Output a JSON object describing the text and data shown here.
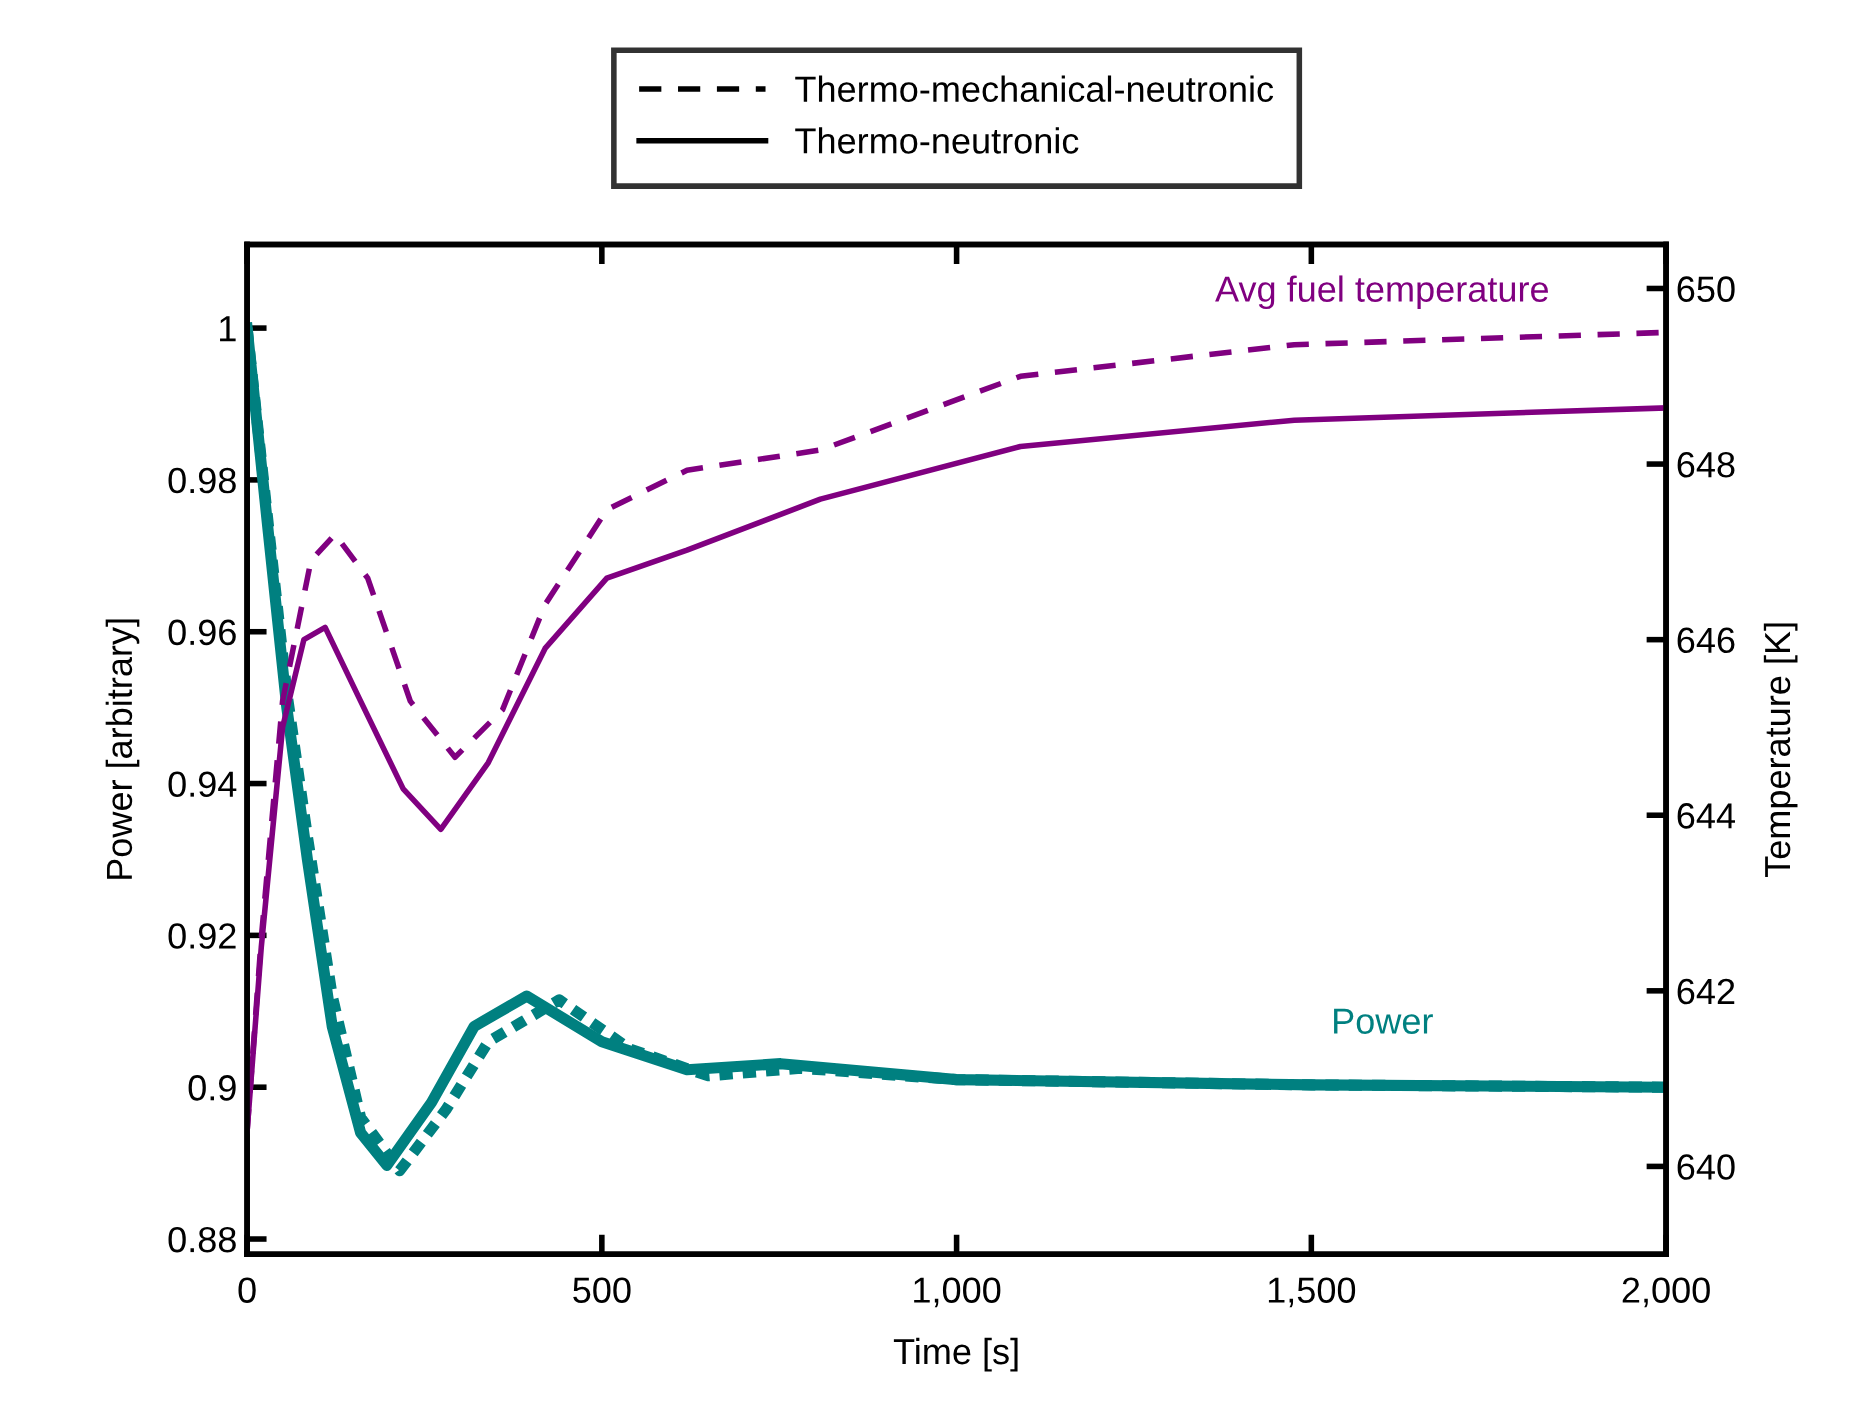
{
  "chart_data": {
    "type": "line",
    "xlabel": "Time [s]",
    "ylabel": "Power [arbitrary]",
    "y2label": "Temperature [K]",
    "xlim": [
      0,
      2000
    ],
    "xticks": [
      0,
      500,
      {
        "value": 1000,
        "label": "1,000"
      },
      {
        "value": 1500,
        "label": "1,500"
      },
      {
        "value": 2000,
        "label": "2,000"
      }
    ],
    "ylim": [
      0.878,
      1.011
    ],
    "yticks": [
      0.88,
      0.9,
      0.92,
      0.94,
      0.96,
      0.98,
      1
    ],
    "y2lim": [
      639,
      650.5
    ],
    "y2ticks": [
      640,
      642,
      644,
      646,
      648,
      650
    ],
    "grid": false,
    "legend": "top",
    "marker": "none",
    "annotations": [
      "Thermo-mechanical-neutronic",
      "Thermo-neutronic"
    ],
    "series": [
      {
        "color": "#008080",
        "line_style": "dashed",
        "x": [
          0,
          30,
          56,
          85,
          120,
          160,
          215,
          280,
          340,
          440,
          540,
          650,
          780,
          1000,
          1500,
          2000
        ],
        "values": [
          1.0,
          0.974,
          0.952,
          0.933,
          0.912,
          0.896,
          0.889,
          0.897,
          0.906,
          0.9115,
          0.905,
          0.9015,
          0.9025,
          0.901,
          0.9003,
          0.9
        ]
      },
      {
        "name": "Power",
        "color": "#008080",
        "line_style": "solid",
        "x": [
          0,
          30,
          56,
          85,
          120,
          160,
          197,
          260,
          320,
          394,
          500,
          620,
          752,
          1000,
          1500,
          2000
        ],
        "values": [
          1.0,
          0.973,
          0.95,
          0.93,
          0.908,
          0.894,
          0.8897,
          0.898,
          0.908,
          0.912,
          0.906,
          0.9023,
          0.9031,
          0.901,
          0.9003,
          0.9
        ]
      },
      {
        "color": "#800080",
        "line_style": "dashed",
        "axis": "y2",
        "x": [
          0,
          20,
          50,
          90,
          124,
          170,
          230,
          293,
          360,
          420,
          507,
          620,
          808,
          1090,
          1476,
          2000
        ],
        "values": [
          640.4,
          642.6,
          645.3,
          646.9,
          647.2,
          646.7,
          645.3,
          644.66,
          645.2,
          646.4,
          647.48,
          647.93,
          648.16,
          649.0,
          649.36,
          649.5
        ]
      },
      {
        "name": "Avg fuel temperature",
        "color": "#800080",
        "line_style": "solid",
        "axis": "y2",
        "x": [
          0,
          20,
          50,
          80,
          110,
          160,
          220,
          273,
          340,
          420,
          507,
          620,
          808,
          1090,
          1476,
          2000
        ],
        "values": [
          640.4,
          642.5,
          645.0,
          646.0,
          646.14,
          645.3,
          644.3,
          643.84,
          644.6,
          645.9,
          646.7,
          647.02,
          647.6,
          648.2,
          648.5,
          648.64
        ]
      }
    ]
  }
}
